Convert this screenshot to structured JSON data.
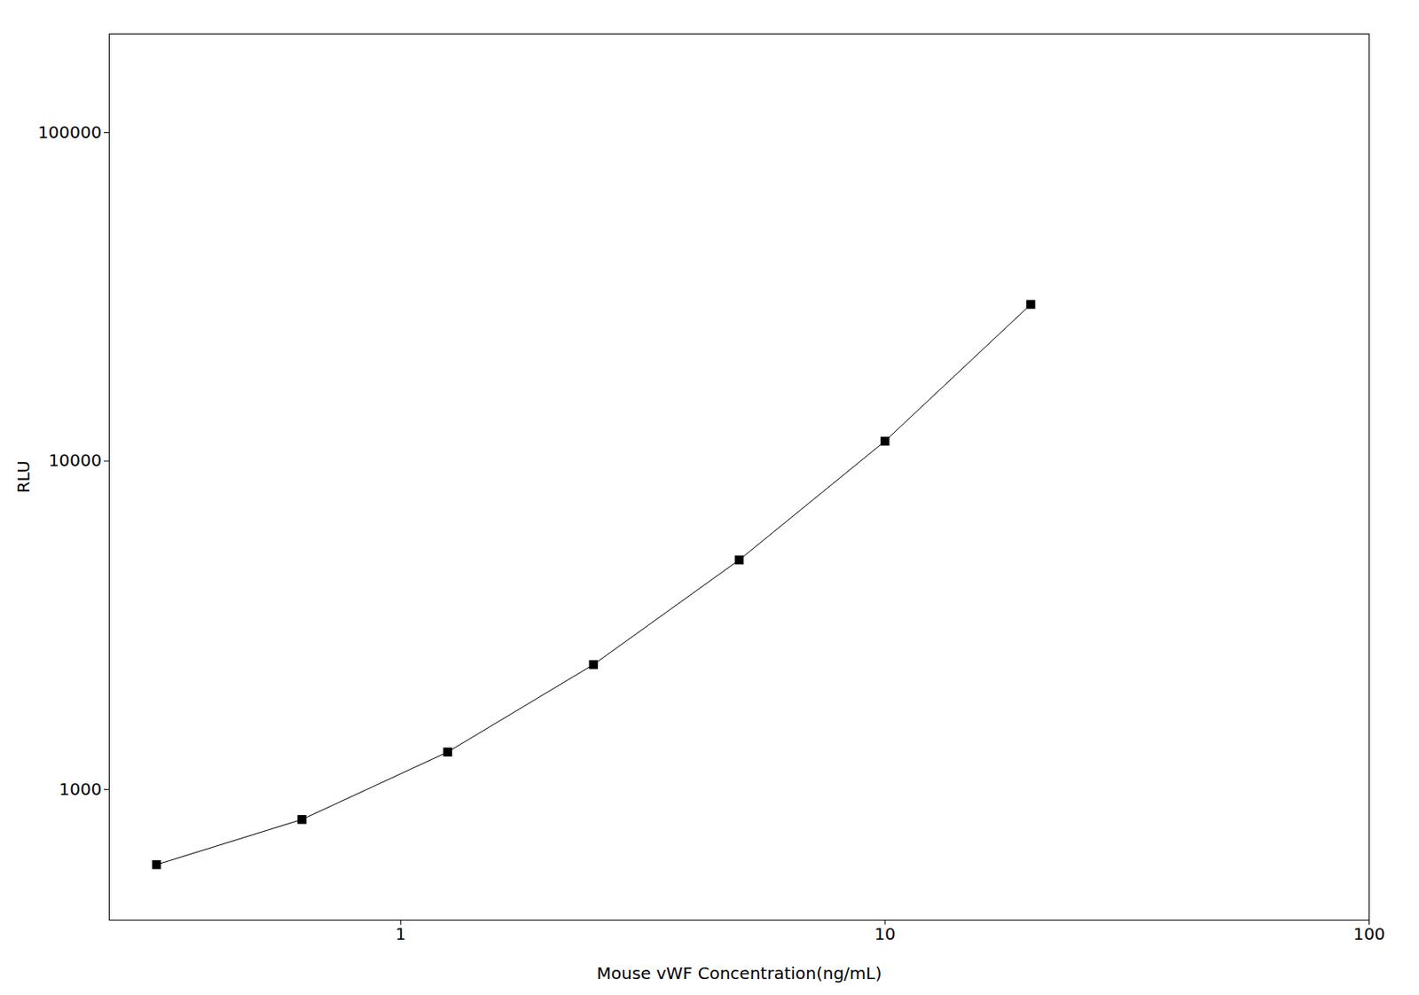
{
  "chart_data": {
    "type": "line",
    "xlabel": "Mouse vWF Concentration(ng/mL)",
    "ylabel": "RLU",
    "x": [
      0.313,
      0.625,
      1.25,
      2.5,
      5.0,
      10.0,
      20.0
    ],
    "values": [
      590,
      810,
      1300,
      2400,
      5000,
      11500,
      30000
    ],
    "xlim": [
      0.25,
      100
    ],
    "ylim": [
      400,
      200000
    ],
    "xticks": [
      1,
      10,
      100
    ],
    "yticks": [
      1000,
      10000,
      100000
    ],
    "log": true,
    "grid": false,
    "color": "#000000",
    "marker": "square"
  }
}
